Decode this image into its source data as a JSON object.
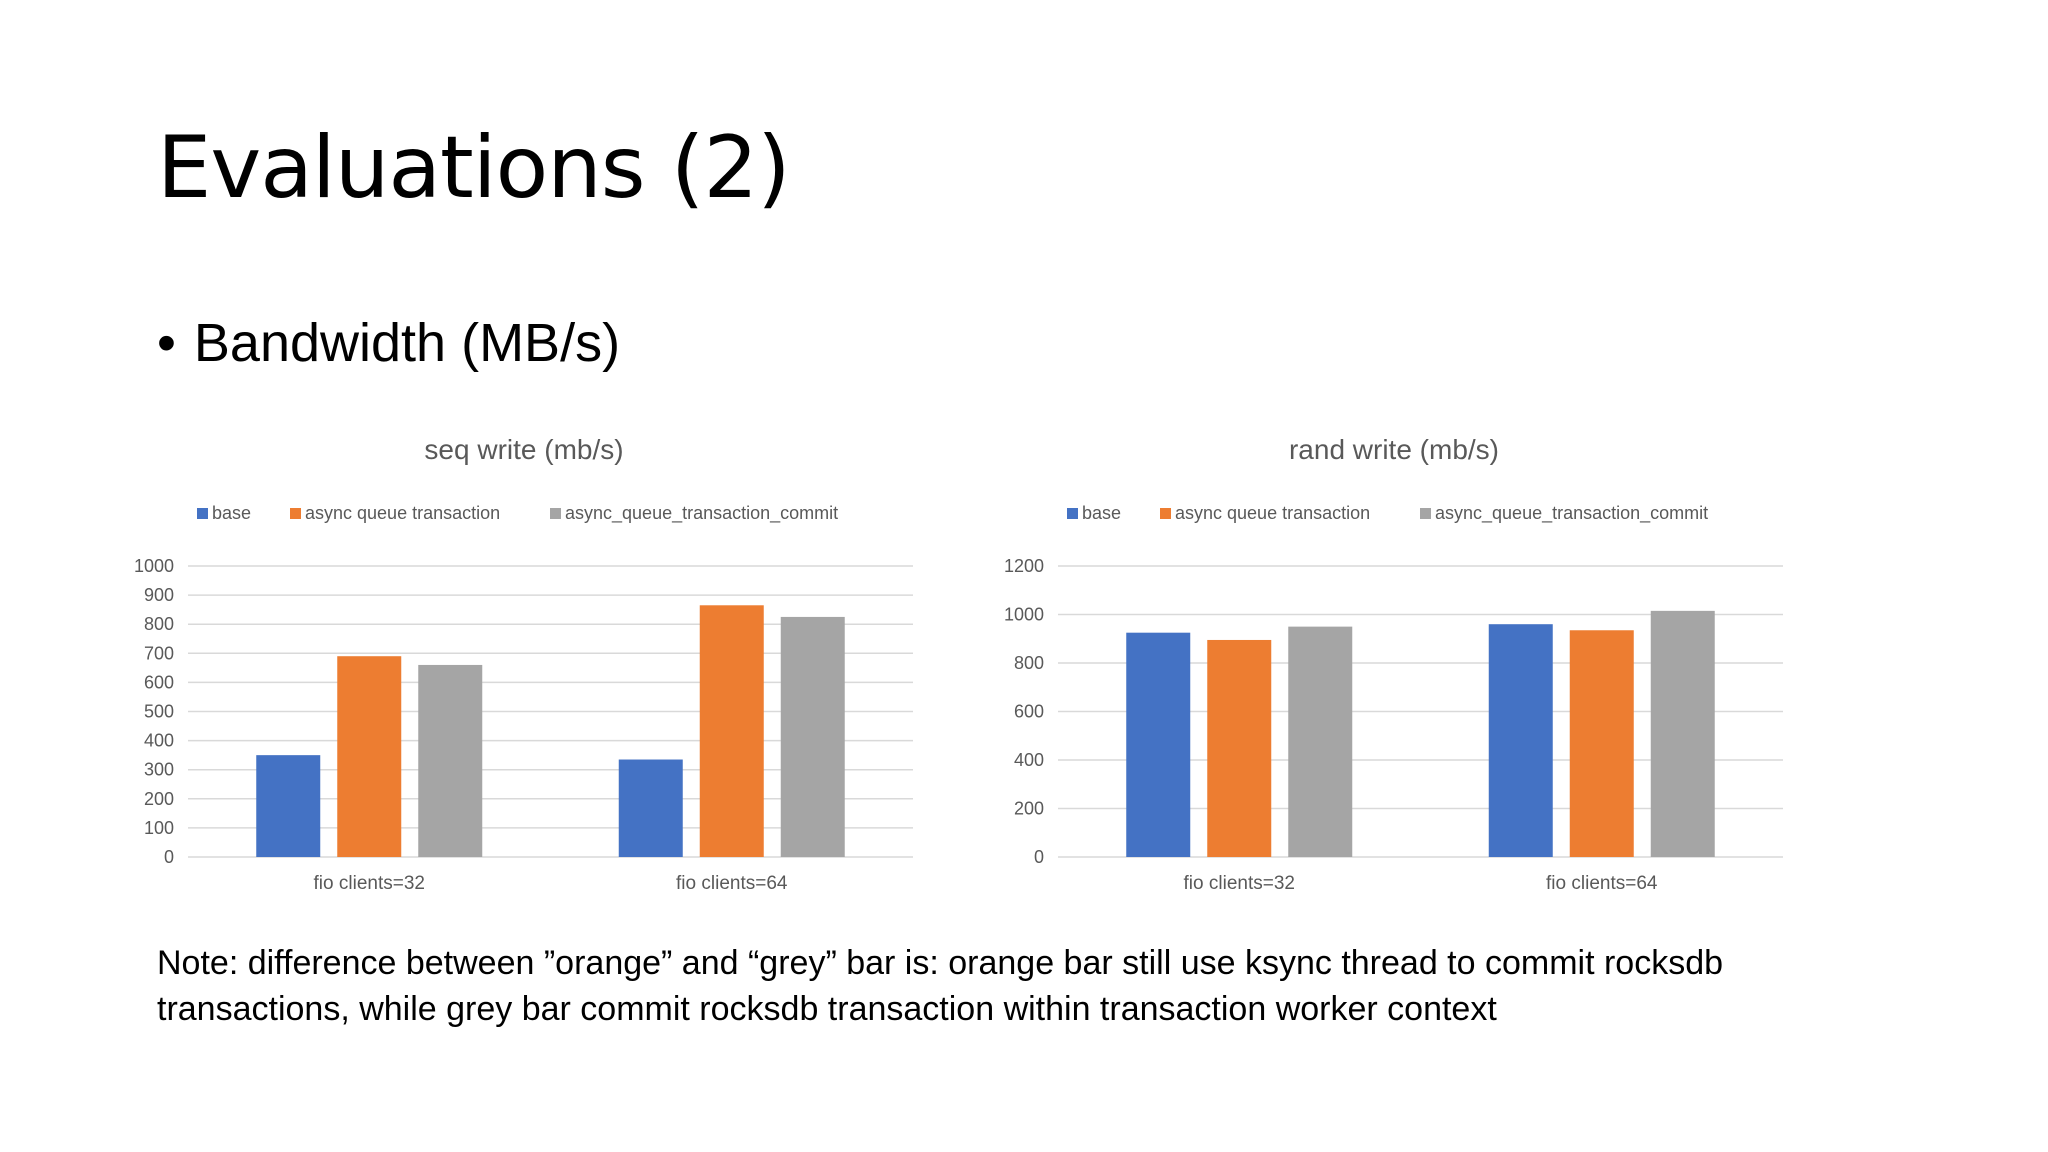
{
  "slide": {
    "title": "Evaluations (2)",
    "bullet": "Bandwidth (MB/s)",
    "note": "Note: difference between ”orange” and “grey” bar is: orange bar still use ksync thread to commit rocksdb transactions, while grey bar commit rocksdb transaction within transaction worker context"
  },
  "colors": {
    "base": "#4472c4",
    "async_queue_transaction": "#ed7d31",
    "async_queue_transaction_commit": "#a5a5a5",
    "grid": "#d9d9d9",
    "text": "#595959"
  },
  "chart_data": [
    {
      "type": "bar",
      "title": "seq write (mb/s)",
      "categories": [
        "fio clients=32",
        "fio clients=64"
      ],
      "series": [
        {
          "name": "base",
          "values": [
            350,
            335
          ]
        },
        {
          "name": "async queue transaction",
          "values": [
            690,
            865
          ]
        },
        {
          "name": "async_queue_transaction_commit",
          "values": [
            660,
            825
          ]
        }
      ],
      "ylim": [
        0,
        1000
      ],
      "yticks": [
        0,
        100,
        200,
        300,
        400,
        500,
        600,
        700,
        800,
        900,
        1000
      ],
      "legend": "top",
      "grid": true
    },
    {
      "type": "bar",
      "title": "rand write (mb/s)",
      "categories": [
        "fio clients=32",
        "fio clients=64"
      ],
      "series": [
        {
          "name": "base",
          "values": [
            925,
            960
          ]
        },
        {
          "name": "async queue transaction",
          "values": [
            895,
            935
          ]
        },
        {
          "name": "async_queue_transaction_commit",
          "values": [
            950,
            1015
          ]
        }
      ],
      "ylim": [
        0,
        1200
      ],
      "yticks": [
        0,
        200,
        400,
        600,
        800,
        1000,
        1200
      ],
      "legend": "top",
      "grid": true
    }
  ]
}
